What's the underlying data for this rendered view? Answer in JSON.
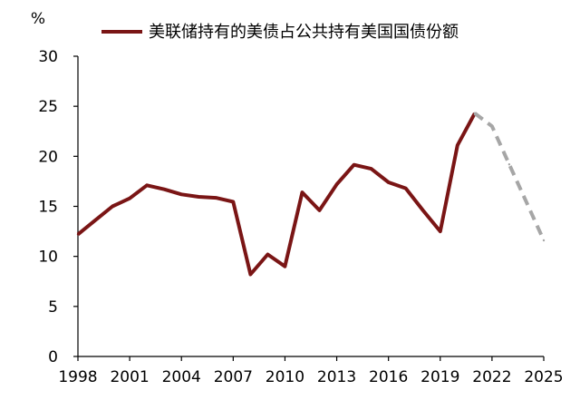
{
  "chart_data": {
    "type": "line",
    "y_unit": "%",
    "ylim": [
      0,
      30
    ],
    "y_ticks": [
      0,
      5,
      10,
      15,
      20,
      25,
      30
    ],
    "xlim": [
      1998,
      2025
    ],
    "x_ticks": [
      1998,
      2001,
      2004,
      2007,
      2010,
      2013,
      2016,
      2019,
      2022,
      2025
    ],
    "grid": false,
    "legend_position": "top",
    "series": [
      {
        "name": "美联储持有的美债占公共持有美国国债份额",
        "color": "#7a1515",
        "style": "solid",
        "points": [
          {
            "x": 1998,
            "y": 12.2
          },
          {
            "x": 1999,
            "y": 13.6
          },
          {
            "x": 2000,
            "y": 15.0
          },
          {
            "x": 2001,
            "y": 15.8
          },
          {
            "x": 2002,
            "y": 17.1
          },
          {
            "x": 2003,
            "y": 16.7
          },
          {
            "x": 2004,
            "y": 16.2
          },
          {
            "x": 2005,
            "y": 15.95
          },
          {
            "x": 2006,
            "y": 15.85
          },
          {
            "x": 2007,
            "y": 15.45
          },
          {
            "x": 2008,
            "y": 8.2
          },
          {
            "x": 2009,
            "y": 10.2
          },
          {
            "x": 2010,
            "y": 9.0
          },
          {
            "x": 2011,
            "y": 16.4
          },
          {
            "x": 2012,
            "y": 14.6
          },
          {
            "x": 2013,
            "y": 17.2
          },
          {
            "x": 2014,
            "y": 19.15
          },
          {
            "x": 2015,
            "y": 18.75
          },
          {
            "x": 2016,
            "y": 17.4
          },
          {
            "x": 2017,
            "y": 16.8
          },
          {
            "x": 2018,
            "y": 14.6
          },
          {
            "x": 2019,
            "y": 12.5
          },
          {
            "x": 2020,
            "y": 21.1
          },
          {
            "x": 2021,
            "y": 24.3
          }
        ]
      },
      {
        "name": "",
        "color": "#a6a6a6",
        "style": "dashed",
        "points": [
          {
            "x": 2021,
            "y": 24.3
          },
          {
            "x": 2022,
            "y": 23.0
          },
          {
            "x": 2023,
            "y": 19.2
          },
          {
            "x": 2024,
            "y": 15.4
          },
          {
            "x": 2025,
            "y": 11.6
          }
        ]
      }
    ]
  }
}
